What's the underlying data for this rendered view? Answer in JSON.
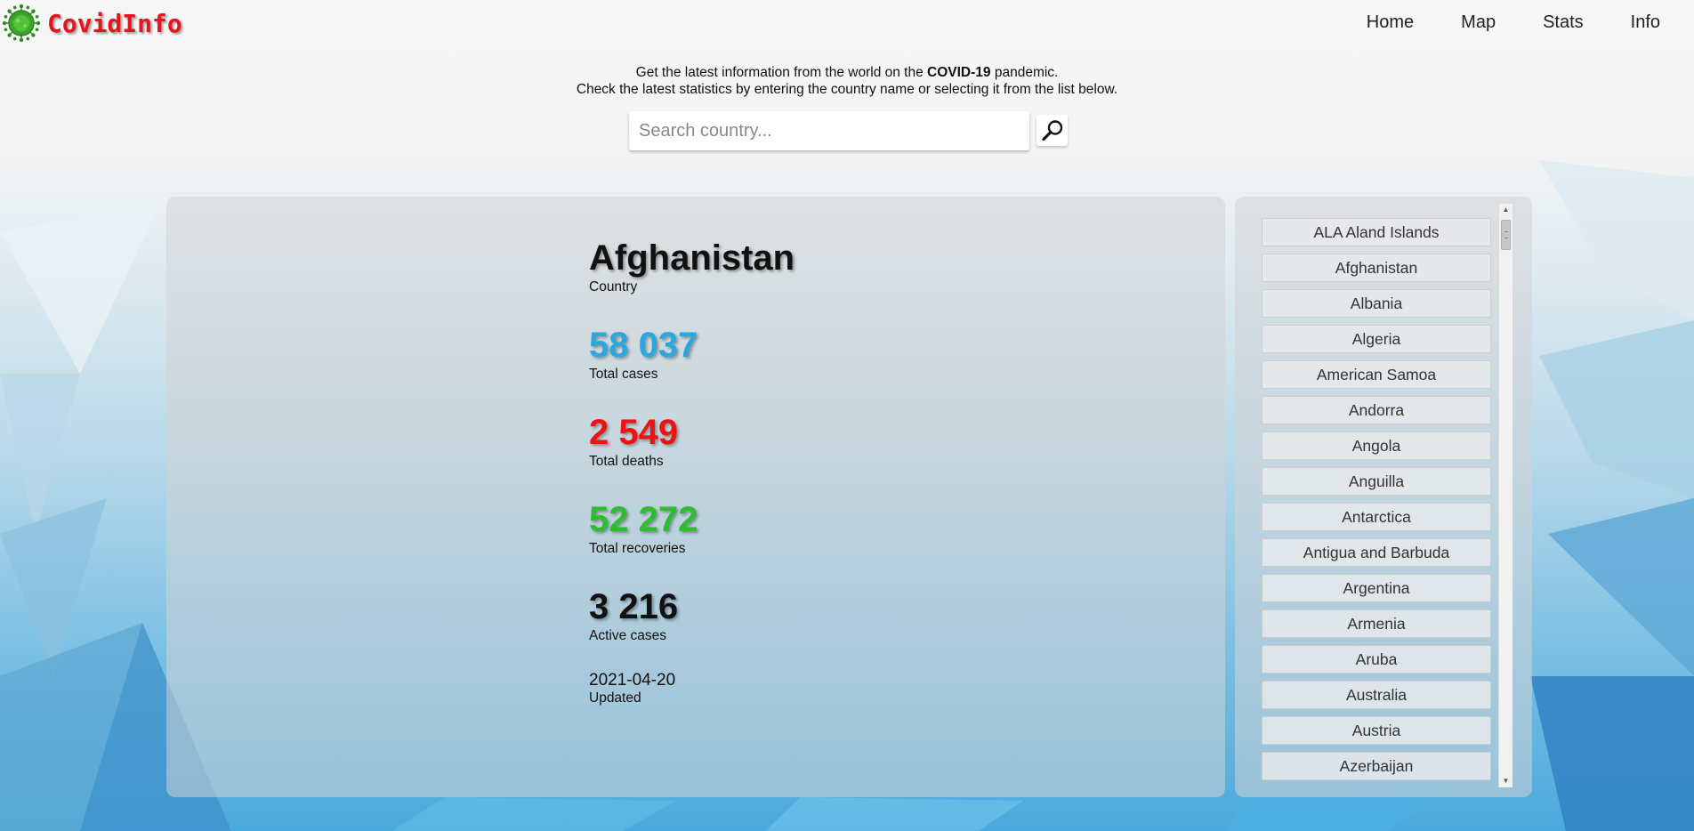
{
  "header": {
    "logo_text": "CovidInfo",
    "nav": [
      {
        "label": "Home"
      },
      {
        "label": "Map"
      },
      {
        "label": "Stats"
      },
      {
        "label": "Info"
      }
    ]
  },
  "intro": {
    "line1_prefix": "Get the latest information from the world on the ",
    "line1_bold": "COVID-19",
    "line1_suffix": " pandemic.",
    "line2": "Check the latest statistics by entering the country name or selecting it from the list below."
  },
  "search": {
    "placeholder": "Search country...",
    "value": ""
  },
  "stats": {
    "country": {
      "value": "Afghanistan",
      "label": "Country"
    },
    "total_cases": {
      "value": "58 037",
      "label": "Total cases"
    },
    "total_deaths": {
      "value": "2 549",
      "label": "Total deaths"
    },
    "total_recoveries": {
      "value": "52 272",
      "label": "Total recoveries"
    },
    "active_cases": {
      "value": "3 216",
      "label": "Active cases"
    },
    "updated": {
      "value": "2021-04-20",
      "label": "Updated"
    }
  },
  "colors": {
    "logo_red": "#e8141b",
    "cases_blue": "#29a8e0",
    "deaths_red": "#f01212",
    "recoveries_green": "#2bbf2b"
  },
  "countries": [
    "ALA Aland Islands",
    "Afghanistan",
    "Albania",
    "Algeria",
    "American Samoa",
    "Andorra",
    "Angola",
    "Anguilla",
    "Antarctica",
    "Antigua and Barbuda",
    "Argentina",
    "Armenia",
    "Aruba",
    "Australia",
    "Austria",
    "Azerbaijan"
  ]
}
